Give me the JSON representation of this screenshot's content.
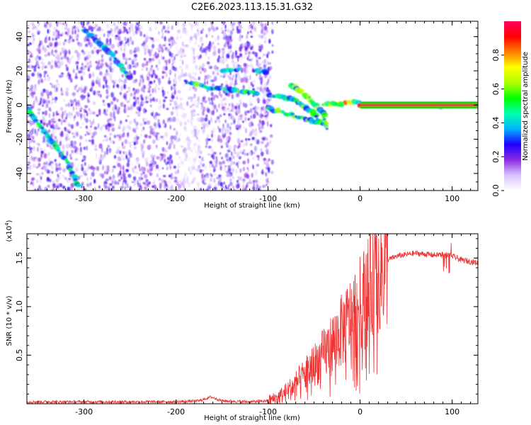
{
  "title": "C2E6.2023.113.15.31.G32",
  "chart_data": [
    {
      "type": "heatmap",
      "xlabel": "Height of straight line (km)",
      "ylabel": "Frequency (Hz)",
      "xlim": [
        -362,
        128
      ],
      "ylim": [
        -50,
        49
      ],
      "x_ticks": [
        -300,
        -200,
        -100,
        0,
        100
      ],
      "y_ticks": [
        -40,
        -20,
        0,
        20,
        40
      ],
      "colorbar": {
        "label": "Normalized spectral amplitude",
        "range": [
          0,
          1
        ],
        "ticks": [
          "0.0",
          "0.2",
          "0.4",
          "0.6",
          "0.8"
        ],
        "colors": [
          "#ffffff",
          "#d9c2ff",
          "#8a2be2",
          "#1e00ff",
          "#00b4ff",
          "#00ffb0",
          "#00ff00",
          "#b0ff00",
          "#ffff00",
          "#ff8000",
          "#ff0000",
          "#ff0060"
        ]
      },
      "noise_region": {
        "x_range": [
          -362,
          -95
        ],
        "level": 0.18
      },
      "features": [
        {
          "points": [
            [
              -362,
              -2
            ],
            [
              -320,
              -32
            ],
            [
              -305,
              -48
            ]
          ],
          "level": 0.35
        },
        {
          "points": [
            [
              -300,
              44
            ],
            [
              -270,
              30
            ],
            [
              -250,
              15
            ]
          ],
          "level": 0.3
        },
        {
          "points": [
            [
              -190,
              14
            ],
            [
              -165,
              10
            ],
            [
              -140,
              9
            ],
            [
              -110,
              7
            ]
          ],
          "level": 0.4
        },
        {
          "points": [
            [
              -150,
              20
            ],
            [
              -130,
              21
            ]
          ],
          "level": 0.3
        },
        {
          "points": [
            [
              -115,
              20
            ],
            [
              -100,
              19
            ]
          ],
          "level": 0.3
        },
        {
          "points": [
            [
              -100,
              6
            ],
            [
              -70,
              3
            ],
            [
              -50,
              -5
            ],
            [
              -40,
              -12
            ]
          ],
          "level": 0.4
        },
        {
          "points": [
            [
              -100,
              -2
            ],
            [
              -80,
              -5
            ],
            [
              -60,
              -8
            ],
            [
              -45,
              -10
            ]
          ],
          "level": 0.4
        },
        {
          "points": [
            [
              -75,
              12
            ],
            [
              -55,
              4
            ],
            [
              -40,
              -5
            ],
            [
              -35,
              -15
            ]
          ],
          "level": 0.45
        },
        {
          "points": [
            [
              -40,
              0
            ],
            [
              -20,
              1
            ],
            [
              0,
              2
            ]
          ],
          "level": 0.55
        },
        {
          "points": [
            [
              0,
              0
            ],
            [
              128,
              0
            ]
          ],
          "level": 0.9
        },
        {
          "points": [
            [
              88,
              -2
            ],
            [
              88,
              2
            ]
          ],
          "level": 0.2
        }
      ]
    },
    {
      "type": "line",
      "xlabel": "Height of straight line (km)",
      "ylabel": "SNR (10 * v/v)",
      "y_multiplier": "(x10^4)",
      "xlim": [
        -362,
        128
      ],
      "ylim": [
        0,
        1.75
      ],
      "x_ticks": [
        -300,
        -200,
        -100,
        0,
        100
      ],
      "y_ticks": [
        "0.5",
        "1.0",
        "1.5"
      ],
      "color": "#ee3333",
      "series": [
        {
          "x": [
            -362,
            -300,
            -250,
            -200,
            -175,
            -162,
            -150,
            -120,
            -100,
            -90,
            -80,
            -70,
            -60,
            -50,
            -40,
            -30,
            -20,
            -10,
            0,
            10,
            20,
            30,
            40,
            60,
            80,
            95,
            110,
            128
          ],
          "values": [
            0.02,
            0.02,
            0.02,
            0.02,
            0.03,
            0.07,
            0.03,
            0.02,
            0.03,
            0.06,
            0.12,
            0.2,
            0.3,
            0.4,
            0.5,
            0.62,
            0.75,
            0.88,
            1.02,
            1.18,
            1.35,
            1.48,
            1.52,
            1.55,
            1.53,
            1.54,
            1.48,
            1.45
          ]
        }
      ]
    }
  ]
}
